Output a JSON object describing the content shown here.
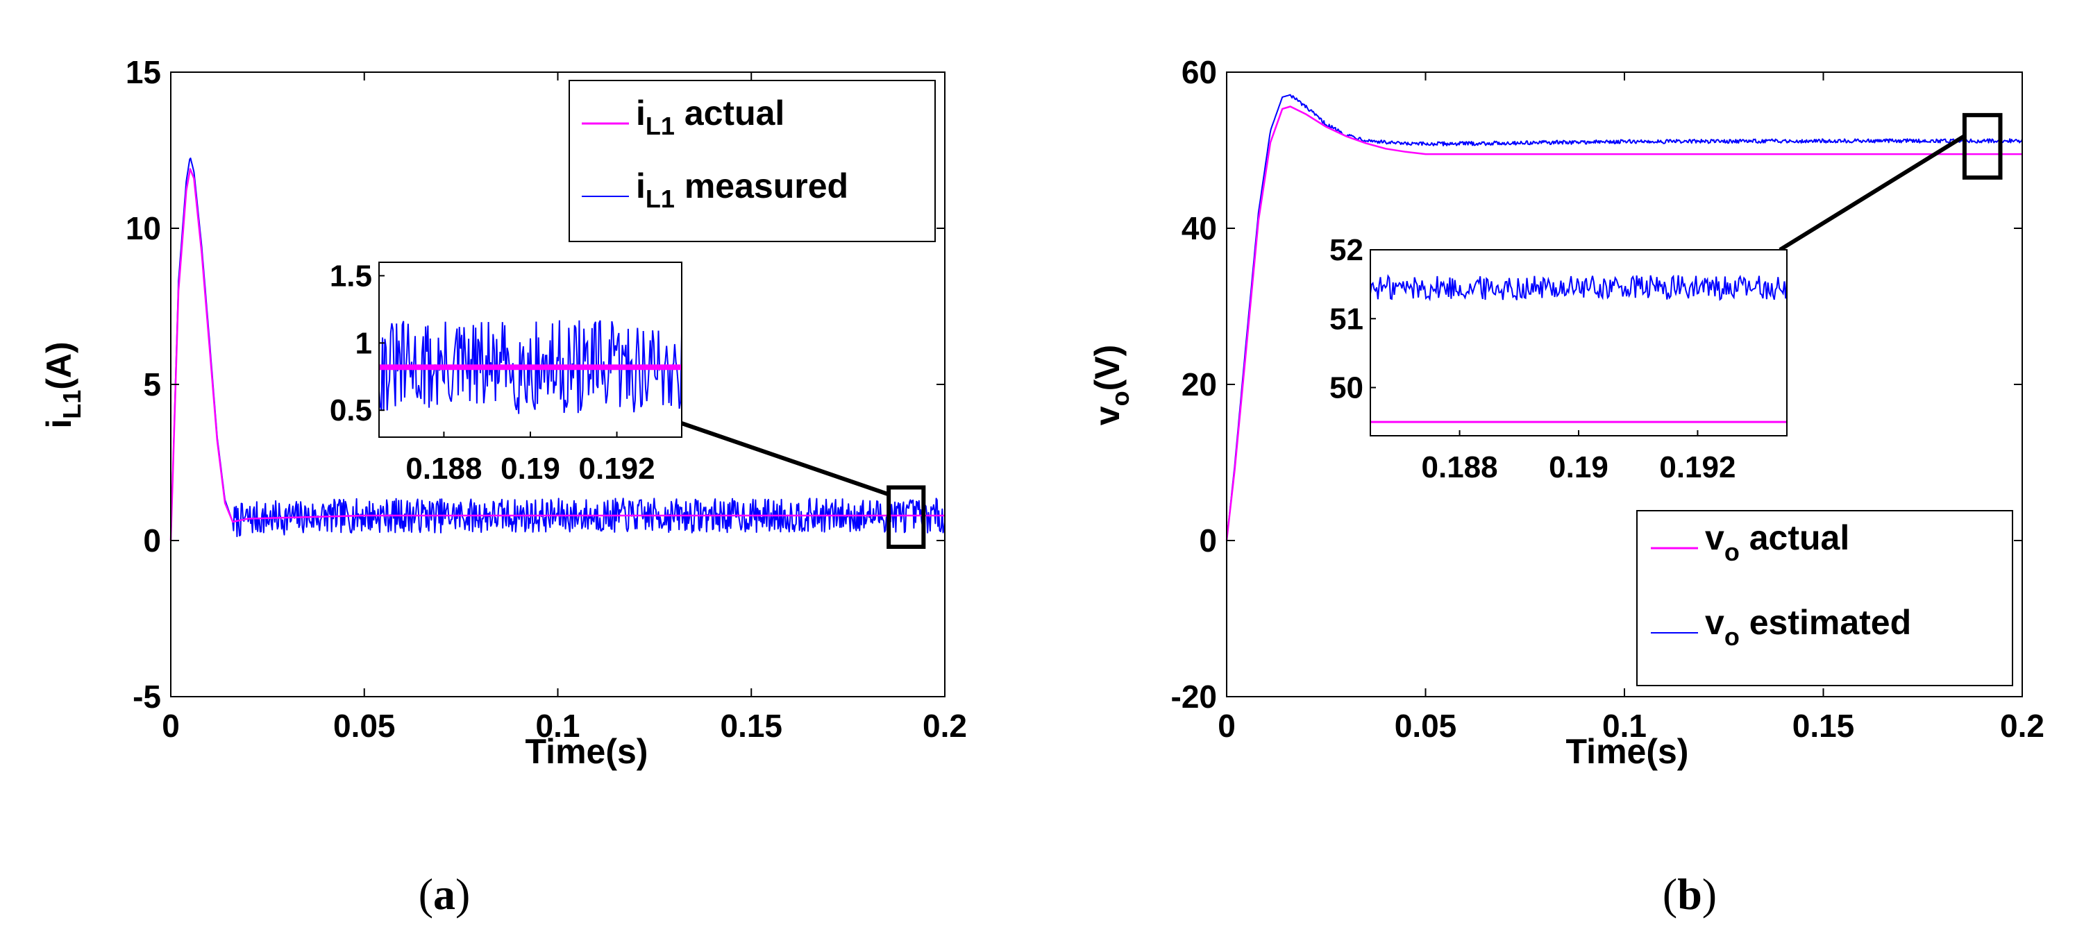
{
  "chart_data": [
    {
      "type": "line",
      "panel": "a",
      "panel_label": {
        "open": "(",
        "letter": "a",
        "close": ")"
      },
      "xlabel": "Time(s)",
      "ylabel": {
        "main": "i",
        "sub": "L1",
        "unit": "(A)"
      },
      "xlim": [
        0,
        0.2
      ],
      "ylim": [
        -5,
        15
      ],
      "xticks": [
        0,
        0.05,
        0.1,
        0.15,
        0.2
      ],
      "xtick_labels": [
        "0",
        "0.05",
        "0.1",
        "0.15",
        "0.2"
      ],
      "yticks": [
        -5,
        0,
        5,
        10,
        15
      ],
      "ytick_labels": [
        "-5",
        "0",
        "5",
        "10",
        "15"
      ],
      "legend_position": "top-right",
      "series": [
        {
          "name": "i_L1 actual",
          "legend": {
            "main": "i",
            "sub": "L1",
            "rest": " actual"
          },
          "color": "#ff00ff",
          "x": [
            0,
            0.002,
            0.004,
            0.005,
            0.006,
            0.008,
            0.01,
            0.012,
            0.014,
            0.016,
            0.02,
            0.05,
            0.1,
            0.15,
            0.2
          ],
          "y": [
            0,
            8,
            11.2,
            11.9,
            11.6,
            9.2,
            6.2,
            3.2,
            1.2,
            0.6,
            0.7,
            0.8,
            0.8,
            0.8,
            0.8
          ]
        },
        {
          "name": "i_L1 measured",
          "legend": {
            "main": "i",
            "sub": "L1",
            "rest": " measured"
          },
          "color": "#0000ff",
          "noise": 0.55,
          "x": [
            0,
            0.002,
            0.004,
            0.005,
            0.006,
            0.008,
            0.01,
            0.012,
            0.014,
            0.016,
            0.02,
            0.05,
            0.1,
            0.15,
            0.2
          ],
          "y": [
            0,
            8.3,
            11.5,
            12.3,
            11.8,
            9.4,
            6.4,
            3.3,
            1.3,
            0.6,
            0.7,
            0.8,
            0.8,
            0.8,
            0.8
          ]
        }
      ],
      "zoom_box": {
        "xlim": [
          0.1855,
          0.1945
        ],
        "ylim": [
          -0.2,
          1.7
        ]
      },
      "inset": {
        "xlim": [
          0.1865,
          0.1935
        ],
        "ylim": [
          0.3,
          1.6
        ],
        "xticks": [
          0.188,
          0.19,
          0.192
        ],
        "xtick_labels": [
          "0.188",
          "0.19",
          "0.192"
        ],
        "yticks": [
          0.5,
          1,
          1.5
        ],
        "ytick_labels": [
          "0.5",
          "1",
          "1.5"
        ],
        "actual_level": 0.82,
        "measured_center": 0.82,
        "measured_noise": 0.35
      }
    },
    {
      "type": "line",
      "panel": "b",
      "panel_label": {
        "open": "(",
        "letter": "b",
        "close": ")"
      },
      "xlabel": "Time(s)",
      "ylabel": {
        "main": "v",
        "sub": "o",
        "unit": "(V)"
      },
      "xlim": [
        0,
        0.2
      ],
      "ylim": [
        -20,
        60
      ],
      "xticks": [
        0,
        0.05,
        0.1,
        0.15,
        0.2
      ],
      "xtick_labels": [
        "0",
        "0.05",
        "0.1",
        "0.15",
        "0.2"
      ],
      "yticks": [
        -20,
        0,
        20,
        40,
        60
      ],
      "ytick_labels": [
        "-20",
        "0",
        "20",
        "40",
        "60"
      ],
      "legend_position": "bottom-right",
      "series": [
        {
          "name": "v_o actual",
          "legend": {
            "main": "v",
            "sub": "o",
            "rest": " actual"
          },
          "color": "#ff00ff",
          "x": [
            0,
            0.002,
            0.005,
            0.008,
            0.011,
            0.014,
            0.016,
            0.02,
            0.025,
            0.03,
            0.035,
            0.04,
            0.045,
            0.05,
            0.1,
            0.15,
            0.2
          ],
          "y": [
            0,
            9,
            25,
            41,
            51,
            55.3,
            55.6,
            54.6,
            53,
            51.8,
            50.9,
            50.2,
            49.8,
            49.5,
            49.5,
            49.5,
            49.5
          ]
        },
        {
          "name": "v_o estimated",
          "legend": {
            "main": "v",
            "sub": "o",
            "rest": " estimated"
          },
          "color": "#0000ff",
          "noise": 0.25,
          "x": [
            0,
            0.002,
            0.005,
            0.008,
            0.011,
            0.014,
            0.016,
            0.02,
            0.025,
            0.03,
            0.035,
            0.04,
            0.045,
            0.05,
            0.1,
            0.15,
            0.2
          ],
          "y": [
            0,
            9.5,
            26,
            42,
            52.5,
            56.8,
            57.1,
            55.5,
            53.3,
            52,
            51.3,
            51,
            50.8,
            50.8,
            51.1,
            51.2,
            51.2
          ]
        }
      ],
      "zoom_box": {
        "xlim": [
          0.1855,
          0.1945
        ],
        "ylim": [
          46.5,
          54.5
        ]
      },
      "inset": {
        "xlim": [
          0.1865,
          0.1935
        ],
        "ylim": [
          49.3,
          52
        ],
        "xticks": [
          0.188,
          0.19,
          0.192
        ],
        "xtick_labels": [
          "0.188",
          "0.19",
          "0.192"
        ],
        "yticks": [
          50,
          51,
          52
        ],
        "ytick_labels": [
          "50",
          "51",
          "52"
        ],
        "actual_level": 49.5,
        "measured_center": 51.45,
        "measured_noise": 0.18
      }
    }
  ]
}
